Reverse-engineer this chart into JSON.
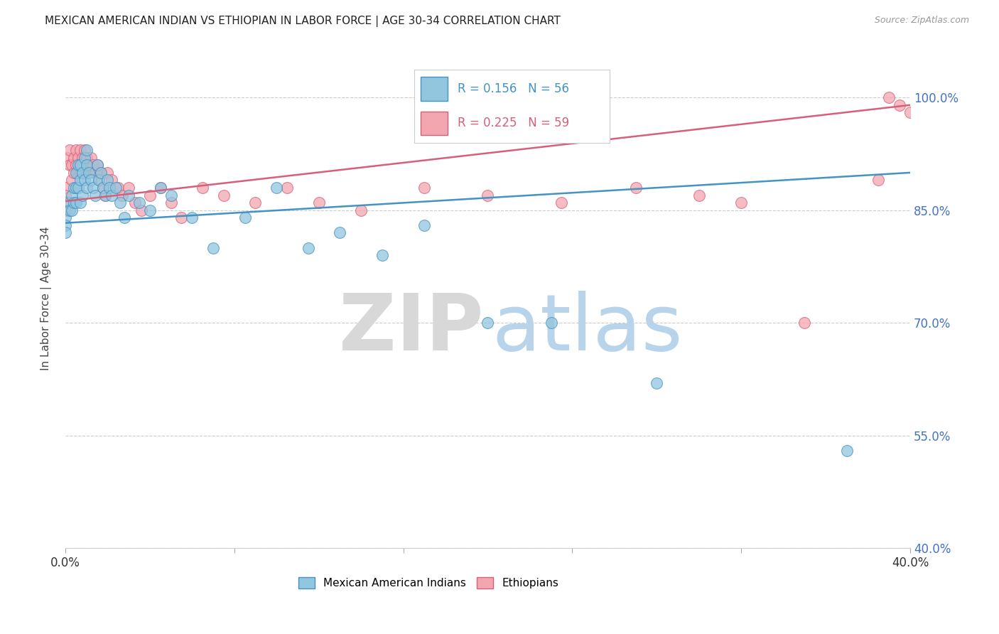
{
  "title": "MEXICAN AMERICAN INDIAN VS ETHIOPIAN IN LABOR FORCE | AGE 30-34 CORRELATION CHART",
  "source": "Source: ZipAtlas.com",
  "ylabel": "In Labor Force | Age 30-34",
  "xlim": [
    0.0,
    0.4
  ],
  "ylim": [
    0.4,
    1.065
  ],
  "yticks": [
    0.4,
    0.55,
    0.7,
    0.85,
    1.0
  ],
  "ytick_labels": [
    "40.0%",
    "55.0%",
    "70.0%",
    "85.0%",
    "100.0%"
  ],
  "xticks": [
    0.0,
    0.08,
    0.16,
    0.24,
    0.32,
    0.4
  ],
  "xtick_labels": [
    "0.0%",
    "",
    "",
    "",
    "",
    "40.0%"
  ],
  "blue_R": 0.156,
  "blue_N": 56,
  "pink_R": 0.225,
  "pink_N": 59,
  "blue_color": "#92c5de",
  "pink_color": "#f4a6b0",
  "blue_edge_color": "#4393c3",
  "pink_edge_color": "#d6607a",
  "blue_line_color": "#4393c3",
  "pink_line_color": "#d6607a",
  "legend_label_blue": "Mexican American Indians",
  "legend_label_pink": "Ethiopians",
  "blue_scatter_x": [
    0.0,
    0.0,
    0.0,
    0.002,
    0.002,
    0.003,
    0.003,
    0.004,
    0.004,
    0.005,
    0.005,
    0.005,
    0.006,
    0.006,
    0.007,
    0.007,
    0.007,
    0.008,
    0.008,
    0.009,
    0.009,
    0.01,
    0.01,
    0.01,
    0.011,
    0.012,
    0.013,
    0.014,
    0.015,
    0.016,
    0.017,
    0.018,
    0.019,
    0.02,
    0.021,
    0.022,
    0.024,
    0.026,
    0.028,
    0.03,
    0.035,
    0.04,
    0.045,
    0.05,
    0.06,
    0.07,
    0.085,
    0.1,
    0.115,
    0.13,
    0.15,
    0.17,
    0.2,
    0.23,
    0.28,
    0.37
  ],
  "blue_scatter_y": [
    0.84,
    0.83,
    0.82,
    0.86,
    0.85,
    0.87,
    0.85,
    0.88,
    0.86,
    0.9,
    0.88,
    0.86,
    0.91,
    0.88,
    0.91,
    0.89,
    0.86,
    0.9,
    0.87,
    0.92,
    0.89,
    0.93,
    0.91,
    0.88,
    0.9,
    0.89,
    0.88,
    0.87,
    0.91,
    0.89,
    0.9,
    0.88,
    0.87,
    0.89,
    0.88,
    0.87,
    0.88,
    0.86,
    0.84,
    0.87,
    0.86,
    0.85,
    0.88,
    0.87,
    0.84,
    0.8,
    0.84,
    0.88,
    0.8,
    0.82,
    0.79,
    0.83,
    0.7,
    0.7,
    0.62,
    0.53
  ],
  "pink_scatter_x": [
    0.0,
    0.0,
    0.0,
    0.0,
    0.001,
    0.002,
    0.002,
    0.003,
    0.003,
    0.004,
    0.004,
    0.005,
    0.005,
    0.006,
    0.006,
    0.007,
    0.007,
    0.008,
    0.009,
    0.009,
    0.01,
    0.01,
    0.011,
    0.012,
    0.013,
    0.014,
    0.015,
    0.016,
    0.017,
    0.018,
    0.019,
    0.02,
    0.022,
    0.025,
    0.027,
    0.03,
    0.033,
    0.036,
    0.04,
    0.045,
    0.05,
    0.055,
    0.065,
    0.075,
    0.09,
    0.105,
    0.12,
    0.14,
    0.17,
    0.2,
    0.235,
    0.27,
    0.3,
    0.32,
    0.35,
    0.385,
    0.39,
    0.395,
    0.4
  ],
  "pink_scatter_y": [
    0.88,
    0.87,
    0.86,
    0.85,
    0.92,
    0.93,
    0.91,
    0.91,
    0.89,
    0.92,
    0.9,
    0.93,
    0.91,
    0.92,
    0.9,
    0.93,
    0.9,
    0.92,
    0.93,
    0.9,
    0.92,
    0.9,
    0.91,
    0.92,
    0.91,
    0.9,
    0.91,
    0.89,
    0.9,
    0.88,
    0.87,
    0.9,
    0.89,
    0.88,
    0.87,
    0.88,
    0.86,
    0.85,
    0.87,
    0.88,
    0.86,
    0.84,
    0.88,
    0.87,
    0.86,
    0.88,
    0.86,
    0.85,
    0.88,
    0.87,
    0.86,
    0.88,
    0.87,
    0.86,
    0.7,
    0.89,
    1.0,
    0.99,
    0.98
  ],
  "blue_trend_x": [
    0.0,
    0.4
  ],
  "blue_trend_y": [
    0.833,
    0.9
  ],
  "pink_trend_x": [
    0.0,
    0.4
  ],
  "pink_trend_y": [
    0.862,
    0.99
  ]
}
